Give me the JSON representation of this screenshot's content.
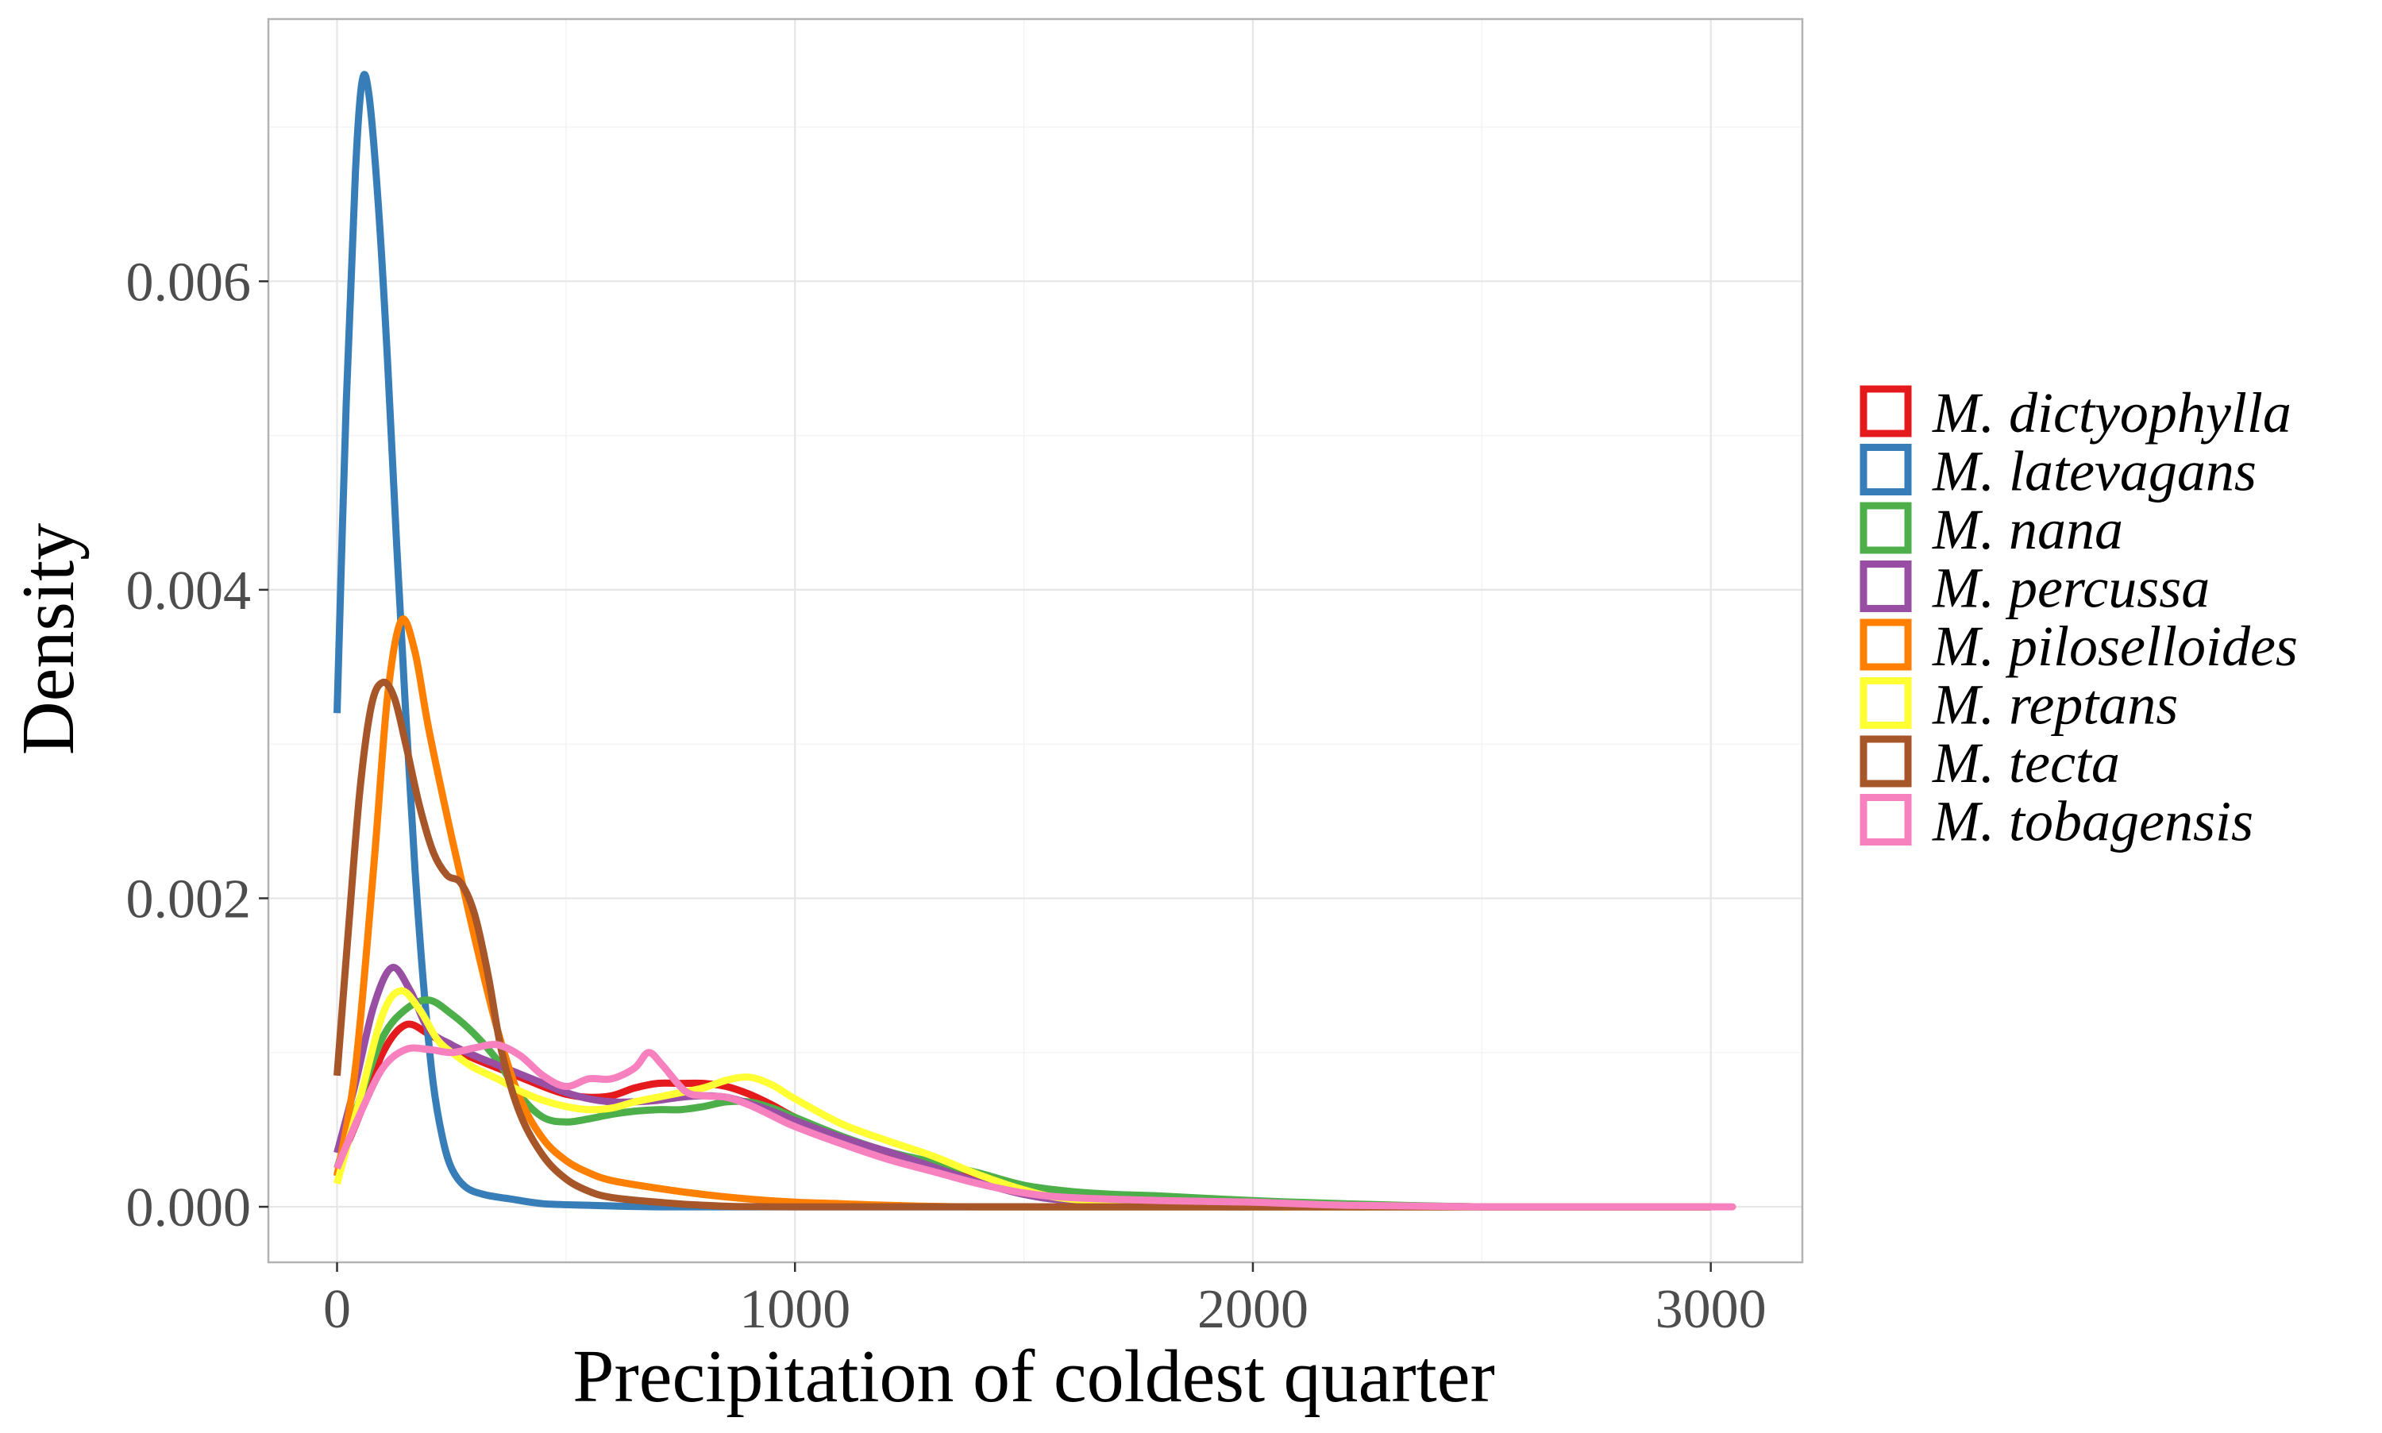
{
  "chart_data": {
    "type": "line",
    "title": "",
    "xlabel": "Precipitation of coldest quarter",
    "ylabel": "Density",
    "xlim": [
      -150,
      3200
    ],
    "ylim": [
      -0.00036,
      0.0077
    ],
    "x_ticks": [
      0,
      1000,
      2000,
      3000
    ],
    "x_tick_labels": [
      "0",
      "1000",
      "2000",
      "3000"
    ],
    "y_ticks": [
      0,
      0.002,
      0.004,
      0.006
    ],
    "y_tick_labels": [
      "0.000",
      "0.002",
      "0.004",
      "0.006"
    ],
    "grid": true,
    "legend_position": "right",
    "series": [
      {
        "name": "M. dictyophylla",
        "color": "#e41a1c",
        "points": [
          [
            0,
            0.00025
          ],
          [
            50,
            0.0006
          ],
          [
            100,
            0.001
          ],
          [
            150,
            0.00118
          ],
          [
            200,
            0.00112
          ],
          [
            250,
            0.00103
          ],
          [
            300,
            0.00096
          ],
          [
            350,
            0.0009
          ],
          [
            400,
            0.00084
          ],
          [
            450,
            0.00078
          ],
          [
            500,
            0.00073
          ],
          [
            550,
            0.00071
          ],
          [
            600,
            0.00072
          ],
          [
            650,
            0.00077
          ],
          [
            700,
            0.0008
          ],
          [
            750,
            0.0008
          ],
          [
            800,
            0.0008
          ],
          [
            850,
            0.00078
          ],
          [
            900,
            0.00073
          ],
          [
            950,
            0.00066
          ],
          [
            1000,
            0.00058
          ],
          [
            1100,
            0.00045
          ],
          [
            1200,
            0.00035
          ],
          [
            1300,
            0.00027
          ],
          [
            1400,
            0.0002
          ],
          [
            1500,
            0.00013
          ],
          [
            1600,
            9e-05
          ],
          [
            1800,
            5e-05
          ],
          [
            2000,
            2e-05
          ],
          [
            2200,
            1e-05
          ],
          [
            2500,
            0.0
          ],
          [
            3000,
            0.0
          ]
        ]
      },
      {
        "name": "M. latevagans",
        "color": "#377eb8",
        "points": [
          [
            0,
            0.0032
          ],
          [
            20,
            0.0052
          ],
          [
            40,
            0.0067
          ],
          [
            55,
            0.0073
          ],
          [
            70,
            0.0072
          ],
          [
            90,
            0.0065
          ],
          [
            110,
            0.0055
          ],
          [
            130,
            0.0043
          ],
          [
            150,
            0.0032
          ],
          [
            170,
            0.0022
          ],
          [
            190,
            0.0014
          ],
          [
            210,
            0.0008
          ],
          [
            230,
            0.00045
          ],
          [
            250,
            0.00025
          ],
          [
            280,
            0.00013
          ],
          [
            320,
            8e-05
          ],
          [
            380,
            5e-05
          ],
          [
            450,
            2e-05
          ],
          [
            550,
            1e-05
          ],
          [
            700,
            0.0
          ],
          [
            1000,
            0.0
          ],
          [
            1500,
            0.0
          ],
          [
            2000,
            0.0
          ],
          [
            2500,
            0.0
          ],
          [
            3000,
            0.0
          ]
        ]
      },
      {
        "name": "M. nana",
        "color": "#4daf4a",
        "points": [
          [
            0,
            0.00025
          ],
          [
            50,
            0.0007
          ],
          [
            100,
            0.0011
          ],
          [
            150,
            0.00128
          ],
          [
            200,
            0.00134
          ],
          [
            250,
            0.00125
          ],
          [
            300,
            0.00112
          ],
          [
            350,
            0.00095
          ],
          [
            400,
            0.00072
          ],
          [
            450,
            0.00058
          ],
          [
            500,
            0.00055
          ],
          [
            550,
            0.00057
          ],
          [
            600,
            0.0006
          ],
          [
            650,
            0.00062
          ],
          [
            700,
            0.00063
          ],
          [
            750,
            0.00063
          ],
          [
            800,
            0.00065
          ],
          [
            850,
            0.00068
          ],
          [
            900,
            0.00068
          ],
          [
            950,
            0.00064
          ],
          [
            1000,
            0.00058
          ],
          [
            1100,
            0.00046
          ],
          [
            1200,
            0.00036
          ],
          [
            1300,
            0.00029
          ],
          [
            1400,
            0.00022
          ],
          [
            1500,
            0.00014
          ],
          [
            1600,
            0.0001
          ],
          [
            1700,
            8e-05
          ],
          [
            1800,
            7e-05
          ],
          [
            2000,
            4e-05
          ],
          [
            2200,
            2e-05
          ],
          [
            2500,
            0.0
          ],
          [
            3000,
            0.0
          ]
        ]
      },
      {
        "name": "M. percussa",
        "color": "#984ea3",
        "points": [
          [
            0,
            0.00035
          ],
          [
            40,
            0.0008
          ],
          [
            80,
            0.0013
          ],
          [
            120,
            0.00155
          ],
          [
            160,
            0.0014
          ],
          [
            200,
            0.00115
          ],
          [
            250,
            0.00105
          ],
          [
            300,
            0.00098
          ],
          [
            350,
            0.00092
          ],
          [
            400,
            0.00086
          ],
          [
            450,
            0.0008
          ],
          [
            500,
            0.00074
          ],
          [
            550,
            0.0007
          ],
          [
            600,
            0.00068
          ],
          [
            650,
            0.00068
          ],
          [
            700,
            0.00069
          ],
          [
            750,
            0.00071
          ],
          [
            800,
            0.00072
          ],
          [
            850,
            0.00071
          ],
          [
            900,
            0.00067
          ],
          [
            950,
            0.00062
          ],
          [
            1000,
            0.00056
          ],
          [
            1100,
            0.00045
          ],
          [
            1200,
            0.00036
          ],
          [
            1300,
            0.00026
          ],
          [
            1400,
            0.00016
          ],
          [
            1500,
            8e-05
          ],
          [
            1600,
            4e-05
          ],
          [
            1800,
            1e-05
          ],
          [
            2000,
            0.0
          ],
          [
            3000,
            0.0
          ]
        ]
      },
      {
        "name": "M. piloselloides",
        "color": "#ff7f00",
        "points": [
          [
            0,
            0.0002
          ],
          [
            40,
            0.0009
          ],
          [
            80,
            0.0022
          ],
          [
            110,
            0.0033
          ],
          [
            140,
            0.0038
          ],
          [
            170,
            0.0036
          ],
          [
            200,
            0.0031
          ],
          [
            250,
            0.0024
          ],
          [
            300,
            0.00175
          ],
          [
            350,
            0.00115
          ],
          [
            400,
            0.0007
          ],
          [
            450,
            0.00044
          ],
          [
            500,
            0.0003
          ],
          [
            550,
            0.00022
          ],
          [
            600,
            0.00017
          ],
          [
            700,
            0.00012
          ],
          [
            800,
            8e-05
          ],
          [
            900,
            5e-05
          ],
          [
            1000,
            3e-05
          ],
          [
            1100,
            2e-05
          ],
          [
            1200,
            1e-05
          ],
          [
            1400,
            0.0
          ],
          [
            2000,
            0.0
          ],
          [
            3000,
            0.0
          ]
        ]
      },
      {
        "name": "M. reptans",
        "color": "#ffff33",
        "points": [
          [
            0,
            0.00015
          ],
          [
            50,
            0.0007
          ],
          [
            100,
            0.00125
          ],
          [
            140,
            0.0014
          ],
          [
            180,
            0.00128
          ],
          [
            220,
            0.00108
          ],
          [
            260,
            0.00098
          ],
          [
            300,
            0.0009
          ],
          [
            350,
            0.00083
          ],
          [
            400,
            0.00075
          ],
          [
            450,
            0.00069
          ],
          [
            500,
            0.00065
          ],
          [
            550,
            0.00063
          ],
          [
            600,
            0.00064
          ],
          [
            650,
            0.00068
          ],
          [
            700,
            0.00071
          ],
          [
            750,
            0.00074
          ],
          [
            800,
            0.00077
          ],
          [
            850,
            0.00082
          ],
          [
            900,
            0.00084
          ],
          [
            950,
            0.00079
          ],
          [
            1000,
            0.0007
          ],
          [
            1100,
            0.00054
          ],
          [
            1200,
            0.00043
          ],
          [
            1300,
            0.00033
          ],
          [
            1400,
            0.00021
          ],
          [
            1500,
            0.00011
          ],
          [
            1600,
            5e-05
          ],
          [
            1800,
            2e-05
          ],
          [
            2000,
            0.0
          ],
          [
            3000,
            0.0
          ]
        ]
      },
      {
        "name": "M. tecta",
        "color": "#a65628",
        "points": [
          [
            0,
            0.00085
          ],
          [
            25,
            0.0018
          ],
          [
            50,
            0.0027
          ],
          [
            75,
            0.00325
          ],
          [
            100,
            0.0034
          ],
          [
            125,
            0.0033
          ],
          [
            150,
            0.003
          ],
          [
            180,
            0.0026
          ],
          [
            210,
            0.0023
          ],
          [
            240,
            0.00215
          ],
          [
            270,
            0.0021
          ],
          [
            300,
            0.0019
          ],
          [
            330,
            0.0015
          ],
          [
            360,
            0.001
          ],
          [
            400,
            0.0006
          ],
          [
            450,
            0.00033
          ],
          [
            500,
            0.00018
          ],
          [
            550,
            0.0001
          ],
          [
            600,
            6e-05
          ],
          [
            700,
            3e-05
          ],
          [
            800,
            1e-05
          ],
          [
            1000,
            0.0
          ],
          [
            2000,
            0.0
          ],
          [
            3000,
            0.0
          ]
        ]
      },
      {
        "name": "M. tobagensis",
        "color": "#f781bf",
        "points": [
          [
            0,
            0.00025
          ],
          [
            50,
            0.0006
          ],
          [
            100,
            0.0009
          ],
          [
            150,
            0.00102
          ],
          [
            200,
            0.00102
          ],
          [
            250,
            0.001
          ],
          [
            300,
            0.00103
          ],
          [
            350,
            0.00105
          ],
          [
            400,
            0.00098
          ],
          [
            450,
            0.00085
          ],
          [
            500,
            0.00078
          ],
          [
            550,
            0.00083
          ],
          [
            600,
            0.00083
          ],
          [
            650,
            0.0009
          ],
          [
            680,
            0.001
          ],
          [
            710,
            0.00092
          ],
          [
            760,
            0.00075
          ],
          [
            800,
            0.00072
          ],
          [
            850,
            0.00071
          ],
          [
            900,
            0.00066
          ],
          [
            950,
            0.00059
          ],
          [
            1000,
            0.00052
          ],
          [
            1100,
            0.00041
          ],
          [
            1200,
            0.00031
          ],
          [
            1300,
            0.00023
          ],
          [
            1400,
            0.00015
          ],
          [
            1500,
            9e-05
          ],
          [
            1600,
            6e-05
          ],
          [
            1800,
            4e-05
          ],
          [
            2000,
            3e-05
          ],
          [
            2200,
            1e-05
          ],
          [
            2500,
            0.0
          ],
          [
            3000,
            0.0
          ],
          [
            3030,
            0.0
          ]
        ]
      }
    ]
  }
}
